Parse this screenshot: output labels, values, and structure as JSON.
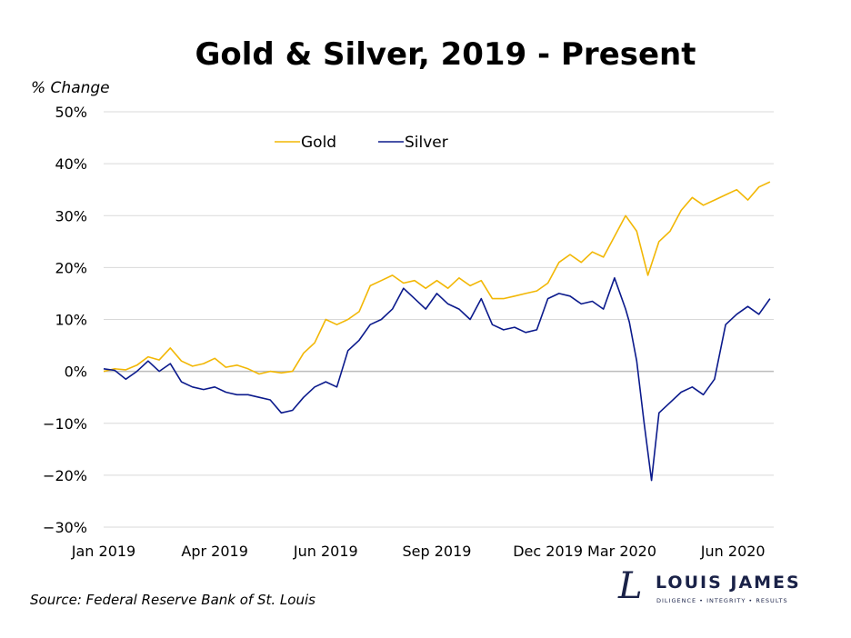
{
  "chart_data": {
    "type": "line",
    "title": "Gold & Silver, 2019 - Present",
    "ylabel": "% Change",
    "xlabel": "",
    "ylim": [
      -30,
      50
    ],
    "yticks": [
      -30,
      -20,
      -10,
      0,
      10,
      20,
      30,
      40,
      50
    ],
    "ytick_labels": [
      "−30%",
      "−20%",
      "−10%",
      "0%",
      "10%",
      "20%",
      "30%",
      "40%",
      "50%"
    ],
    "xlim": [
      0,
      18.1
    ],
    "xticks": [
      0,
      3,
      6,
      9,
      12,
      14,
      17
    ],
    "xtick_labels": [
      "Jan 2019",
      "Apr 2019",
      "Jun 2019",
      "Sep 2019",
      "Dec 2019",
      "Mar 2020",
      "Jun 2020"
    ],
    "x_unit": "months since Jan 2019",
    "grid": true,
    "legend_position": "top-center",
    "series": [
      {
        "name": "Gold",
        "color": "#f2b705",
        "x": [
          0,
          0.3,
          0.6,
          0.9,
          1.2,
          1.5,
          1.8,
          2.1,
          2.4,
          2.7,
          3.0,
          3.3,
          3.6,
          3.9,
          4.2,
          4.5,
          4.8,
          5.1,
          5.4,
          5.7,
          6.0,
          6.3,
          6.6,
          6.9,
          7.2,
          7.5,
          7.8,
          8.1,
          8.4,
          8.7,
          9.0,
          9.3,
          9.6,
          9.9,
          10.2,
          10.5,
          10.8,
          11.1,
          11.4,
          11.7,
          12.0,
          12.3,
          12.6,
          12.9,
          13.2,
          13.5,
          13.8,
          14.1,
          14.4,
          14.7,
          15.0,
          15.3,
          15.6,
          15.9,
          16.2,
          16.5,
          16.8,
          17.1,
          17.4,
          17.7,
          18.0
        ],
        "values": [
          0,
          0.5,
          0.3,
          1.2,
          2.8,
          2.2,
          4.5,
          2.0,
          1.0,
          1.5,
          2.5,
          0.8,
          1.2,
          0.5,
          -0.5,
          0,
          -0.3,
          0,
          3.5,
          5.5,
          10.0,
          9.0,
          10.0,
          11.5,
          16.5,
          17.5,
          18.5,
          17.0,
          17.5,
          16.0,
          17.5,
          16.0,
          18.0,
          16.5,
          17.5,
          14.0,
          14.0,
          14.5,
          15.0,
          15.5,
          17.0,
          21.0,
          22.5,
          21.0,
          23.0,
          22.0,
          26.0,
          30.0,
          27.0,
          18.5,
          25.0,
          27.0,
          31.0,
          33.5,
          32.0,
          33.0,
          34.0,
          35.0,
          33.0,
          35.5,
          36.5
        ]
      },
      {
        "name": "Silver",
        "color": "#0b1a8c",
        "x": [
          0,
          0.3,
          0.6,
          0.9,
          1.2,
          1.5,
          1.8,
          2.1,
          2.4,
          2.7,
          3.0,
          3.3,
          3.6,
          3.9,
          4.2,
          4.5,
          4.8,
          5.1,
          5.4,
          5.7,
          6.0,
          6.3,
          6.6,
          6.9,
          7.2,
          7.5,
          7.8,
          8.1,
          8.4,
          8.7,
          9.0,
          9.3,
          9.6,
          9.9,
          10.2,
          10.5,
          10.8,
          11.1,
          11.4,
          11.7,
          12.0,
          12.3,
          12.6,
          12.9,
          13.2,
          13.5,
          13.8,
          14.1,
          14.2,
          14.4,
          14.6,
          14.8,
          15.0,
          15.3,
          15.6,
          15.9,
          16.2,
          16.5,
          16.8,
          17.1,
          17.4,
          17.7,
          18.0
        ],
        "values": [
          0.5,
          0.2,
          -1.5,
          0,
          2.0,
          0,
          1.5,
          -2.0,
          -3.0,
          -3.5,
          -3.0,
          -4.0,
          -4.5,
          -4.5,
          -5.0,
          -5.5,
          -8.0,
          -7.5,
          -5.0,
          -3.0,
          -2.0,
          -3.0,
          4.0,
          6.0,
          9.0,
          10.0,
          12.0,
          16.0,
          14.0,
          12.0,
          15.0,
          13.0,
          12.0,
          10.0,
          14.0,
          9.0,
          8.0,
          8.5,
          7.5,
          8.0,
          14.0,
          15.0,
          14.5,
          13.0,
          13.5,
          12.0,
          18.0,
          12.0,
          9.5,
          2.0,
          -10.0,
          -21.0,
          -8.0,
          -6.0,
          -4.0,
          -3.0,
          -4.5,
          -1.5,
          9.0,
          11.0,
          12.5,
          11.0,
          14.0
        ]
      }
    ]
  },
  "source_text": "Source: Federal Reserve Bank of St. Louis",
  "logo": {
    "mark": "L",
    "name": "LOUIS JAMES",
    "tagline": "DILIGENCE  •  INTEGRITY  •  RESULTS",
    "color": "#1a2248"
  }
}
